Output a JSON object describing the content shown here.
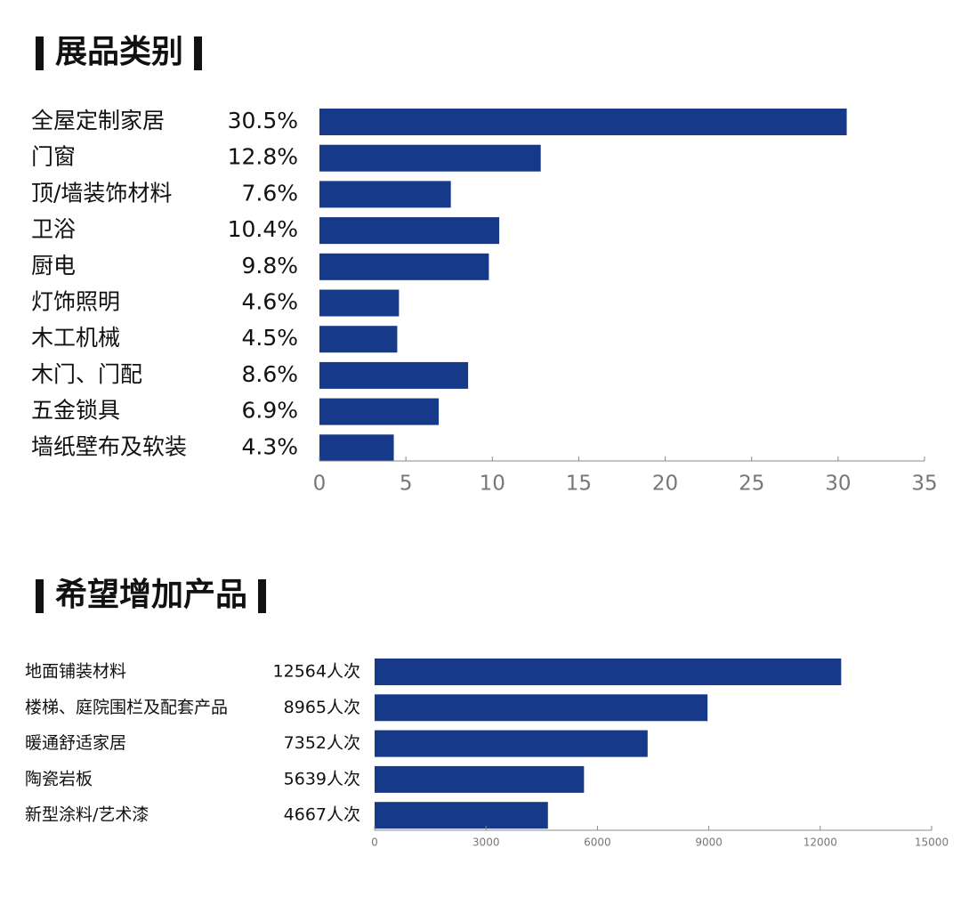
{
  "chart_data": [
    {
      "type": "bar",
      "orientation": "horizontal",
      "title": "展品类别",
      "color": "#16398a",
      "categories": [
        "全屋定制家居",
        "门窗",
        "顶/墙装饰材料",
        "卫浴",
        "厨电",
        "灯饰照明",
        "木工机械",
        "木门、门配",
        "五金锁具",
        "墙纸壁布及软装"
      ],
      "values": [
        30.5,
        12.8,
        7.6,
        10.4,
        9.8,
        4.6,
        4.5,
        8.6,
        6.9,
        4.3
      ],
      "value_labels": [
        "30.5%",
        "12.8%",
        "7.6%",
        "10.4%",
        "9.8%",
        "4.6%",
        "4.5%",
        "8.6%",
        "6.9%",
        "4.3%"
      ],
      "xlim": [
        0,
        35
      ],
      "xticks": [
        0,
        5,
        10,
        15,
        20,
        25,
        30,
        35
      ]
    },
    {
      "type": "bar",
      "orientation": "horizontal",
      "title": "希望增加产品",
      "color": "#16398a",
      "categories": [
        "地面铺装材料",
        "楼梯、庭院围栏及配套产品",
        "暖通舒适家居",
        "陶瓷岩板",
        "新型涂料/艺术漆"
      ],
      "values": [
        12564,
        8965,
        7352,
        5639,
        4667
      ],
      "value_labels": [
        "12564人次",
        "8965人次",
        "7352人次",
        "5639人次",
        "4667人次"
      ],
      "xlim": [
        0,
        15000
      ],
      "xticks": [
        0,
        3000,
        6000,
        9000,
        12000,
        15000
      ]
    }
  ]
}
